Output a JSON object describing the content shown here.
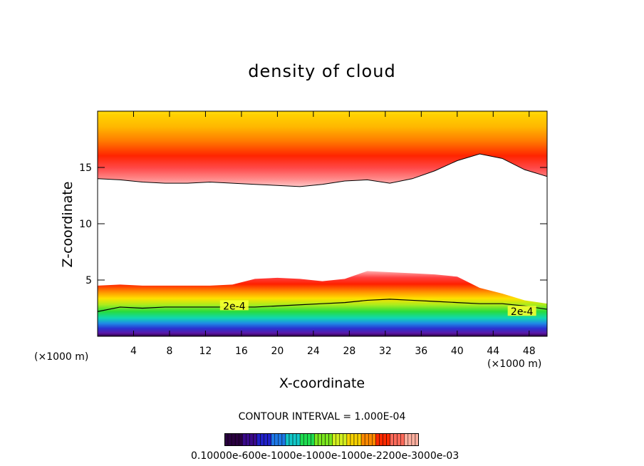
{
  "chart_data": {
    "type": "heatmap",
    "title": "density of cloud",
    "xlabel": "X-coordinate",
    "ylabel": "Z-coordinate",
    "x_unit_left": "(×1000 m)",
    "x_unit_right": "(×1000 m)",
    "xlim": [
      0,
      50
    ],
    "ylim": [
      0,
      20
    ],
    "x_ticks": [
      4,
      8,
      12,
      16,
      20,
      24,
      28,
      32,
      36,
      40,
      44,
      48
    ],
    "y_ticks": [
      5,
      10,
      15
    ],
    "contour_interval_text": "CONTOUR INTERVAL = 1.000E-04",
    "contour_labels": [
      {
        "text": "2e-4",
        "x": 15.2,
        "z": 2.7
      },
      {
        "text": "2e-4",
        "x": 47.2,
        "z": 2.2
      }
    ],
    "colorbar_label_text": "0.10000e-600e-1000e-1000e-1000e-2200e-3000e-03",
    "colorbar_colors": [
      "#2a0040",
      "#3a0a8a",
      "#2020c8",
      "#1e78e6",
      "#12c8c8",
      "#1edc50",
      "#7ae61e",
      "#d2ee1e",
      "#f8d200",
      "#ff8a00",
      "#ff2a00",
      "#ff6a5a",
      "#ffb0a0"
    ],
    "upper_band": {
      "bottom_z": [
        14.0,
        13.9,
        13.7,
        13.6,
        13.6,
        13.7,
        13.6,
        13.5,
        13.4,
        13.3,
        13.5,
        13.8,
        13.9,
        13.6,
        14.0,
        14.7,
        15.6,
        16.2,
        15.8,
        14.8,
        14.2
      ],
      "top_z": 19.8
    },
    "lower_band": {
      "top_z": [
        4.5,
        4.6,
        4.5,
        4.5,
        4.5,
        4.5,
        4.6,
        5.1,
        5.2,
        5.1,
        4.9,
        5.1,
        5.8,
        5.7,
        5.6,
        5.5,
        5.3,
        4.3,
        3.8,
        3.2,
        2.9
      ],
      "contour_z": [
        2.2,
        2.6,
        2.5,
        2.6,
        2.6,
        2.6,
        2.6,
        2.6,
        2.7,
        2.8,
        2.9,
        3.0,
        3.2,
        3.3,
        3.2,
        3.1,
        3.0,
        2.9,
        2.9,
        2.7,
        2.4
      ]
    }
  }
}
